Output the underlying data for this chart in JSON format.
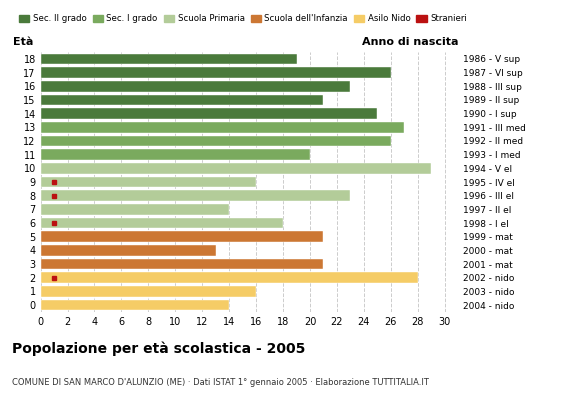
{
  "ages": [
    18,
    17,
    16,
    15,
    14,
    13,
    12,
    11,
    10,
    9,
    8,
    7,
    6,
    5,
    4,
    3,
    2,
    1,
    0
  ],
  "years": [
    "1986 - V sup",
    "1987 - VI sup",
    "1988 - III sup",
    "1989 - II sup",
    "1990 - I sup",
    "1991 - III med",
    "1992 - II med",
    "1993 - I med",
    "1994 - V el",
    "1995 - IV el",
    "1996 - III el",
    "1997 - II el",
    "1998 - I el",
    "1999 - mat",
    "2000 - mat",
    "2001 - mat",
    "2002 - nido",
    "2003 - nido",
    "2004 - nido"
  ],
  "values": [
    19,
    26,
    23,
    21,
    25,
    27,
    26,
    20,
    29,
    16,
    23,
    14,
    18,
    21,
    13,
    21,
    28,
    16,
    14
  ],
  "stranieri": [
    0,
    0,
    0,
    0,
    0,
    0,
    0,
    0,
    0,
    1,
    1,
    0,
    1,
    0,
    0,
    0,
    1,
    0,
    0
  ],
  "bar_colors": [
    "#4a7a3b",
    "#4a7a3b",
    "#4a7a3b",
    "#4a7a3b",
    "#4a7a3b",
    "#7aaa5e",
    "#7aaa5e",
    "#7aaa5e",
    "#b3cc99",
    "#b3cc99",
    "#b3cc99",
    "#b3cc99",
    "#b3cc99",
    "#cc7733",
    "#cc7733",
    "#cc7733",
    "#f5cc66",
    "#f5cc66",
    "#f5cc66"
  ],
  "title": "Popolazione per età scolastica - 2005",
  "subtitle": "COMUNE DI SAN MARCO D'ALUNZIO (ME) · Dati ISTAT 1° gennaio 2005 · Elaborazione TUTTITALIA.IT",
  "xlabel_eta": "Età",
  "xlabel_anno": "Anno di nascita",
  "xlim": [
    0,
    31
  ],
  "xticks": [
    0,
    2,
    4,
    6,
    8,
    10,
    12,
    14,
    16,
    18,
    20,
    22,
    24,
    26,
    28,
    30
  ],
  "legend_labels": [
    "Sec. II grado",
    "Sec. I grado",
    "Scuola Primaria",
    "Scuola dell'Infanzia",
    "Asilo Nido",
    "Stranieri"
  ],
  "legend_colors": [
    "#4a7a3b",
    "#7aaa5e",
    "#b3cc99",
    "#cc7733",
    "#f5cc66",
    "#bb1111"
  ],
  "stranieri_color": "#bb1111",
  "bar_height": 0.78,
  "background_color": "#ffffff",
  "grid_color": "#cccccc"
}
